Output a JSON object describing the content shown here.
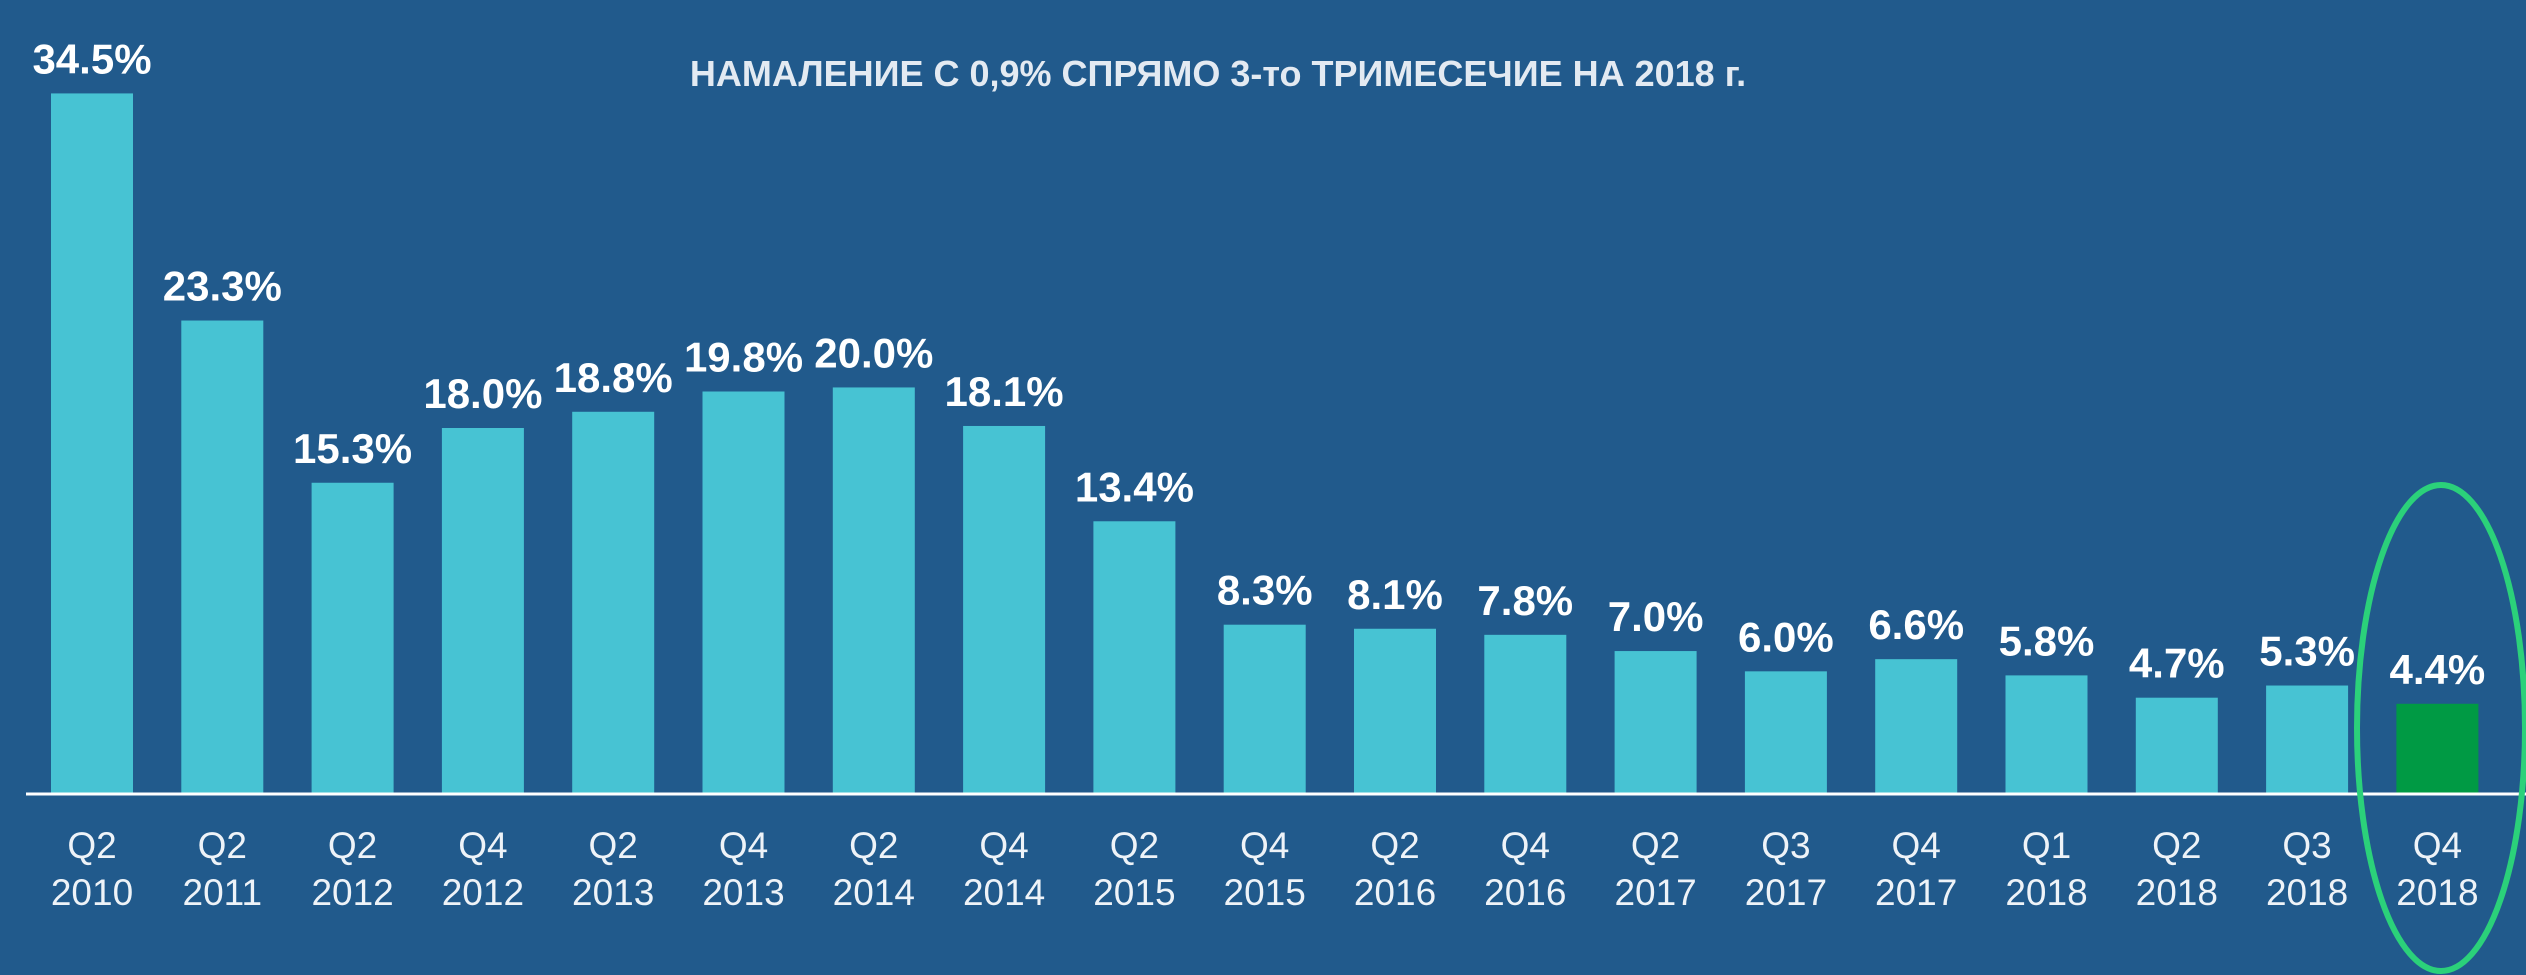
{
  "chart_data": {
    "type": "bar",
    "title": "НАМАЛЕНИЕ С 0,9% СПРЯМО 3-то ТРИМЕСЕЧИЕ НА 2018 г.",
    "categories": [
      "Q2 2010",
      "Q2 2011",
      "Q2 2012",
      "Q4 2012",
      "Q2 2013",
      "Q4 2013",
      "Q2 2014",
      "Q4 2014",
      "Q2 2015",
      "Q4 2015",
      "Q2 2016",
      "Q4 2016",
      "Q2 2017",
      "Q3 2017",
      "Q4 2017",
      "Q1 2018",
      "Q2 2018",
      "Q3 2018",
      "Q4 2018"
    ],
    "values": [
      34.5,
      23.3,
      15.3,
      18.0,
      18.8,
      19.8,
      20.0,
      18.1,
      13.4,
      8.3,
      8.1,
      7.8,
      7.0,
      6.0,
      6.6,
      5.8,
      4.7,
      5.3,
      4.4
    ],
    "value_labels": [
      "34.5%",
      "23.3%",
      "15.3%",
      "18.0%",
      "18.8%",
      "19.8%",
      "20.0%",
      "18.1%",
      "13.4%",
      "8.3%",
      "8.1%",
      "7.8%",
      "7.0%",
      "6.0%",
      "6.6%",
      "5.8%",
      "4.7%",
      "5.3%",
      "4.4%"
    ],
    "colors": [
      "#47c3d3",
      "#47c3d3",
      "#47c3d3",
      "#47c3d3",
      "#47c3d3",
      "#47c3d3",
      "#47c3d3",
      "#47c3d3",
      "#47c3d3",
      "#47c3d3",
      "#47c3d3",
      "#47c3d3",
      "#47c3d3",
      "#47c3d3",
      "#47c3d3",
      "#47c3d3",
      "#47c3d3",
      "#47c3d3",
      "#009a44"
    ],
    "ylim": [
      0,
      36
    ]
  }
}
